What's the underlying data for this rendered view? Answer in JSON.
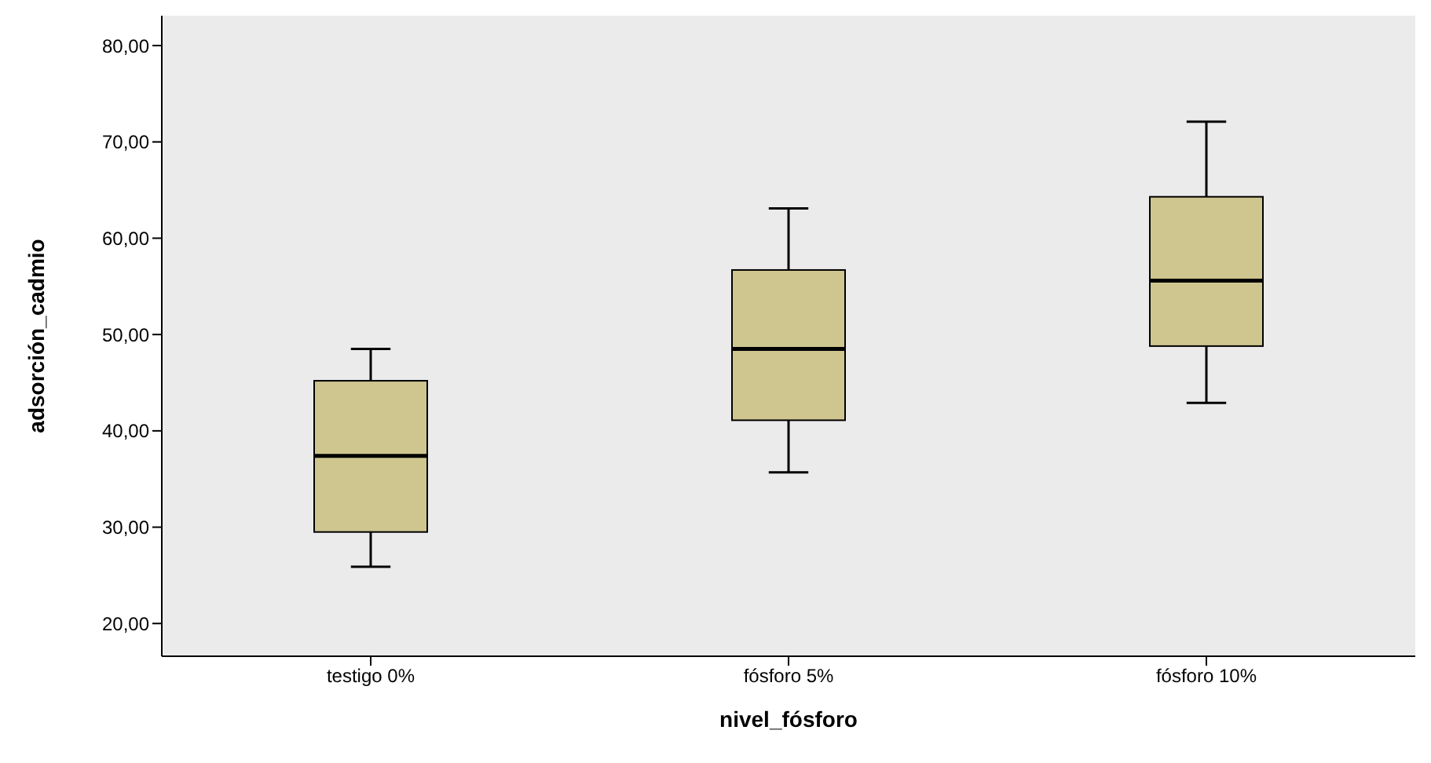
{
  "chart_data": {
    "type": "box",
    "xlabel": "nivel_fósforo",
    "ylabel": "adsorción_cadmio",
    "categories": [
      "testigo 0%",
      "fósforo 5%",
      "fósforo 10%"
    ],
    "color": "#cfc68f",
    "boxes": [
      {
        "low": 25.9,
        "q1": 29.5,
        "median": 37.4,
        "q3": 45.2,
        "high": 48.5
      },
      {
        "low": 35.7,
        "q1": 41.1,
        "median": 48.5,
        "q3": 56.7,
        "high": 63.1
      },
      {
        "low": 42.9,
        "q1": 48.8,
        "median": 55.6,
        "q3": 64.3,
        "high": 72.1
      }
    ],
    "ylim": [
      16.6,
      83.1
    ],
    "yticks": [
      {
        "value": 20,
        "label": "20,00"
      },
      {
        "value": 30,
        "label": "30,00"
      },
      {
        "value": 40,
        "label": "40,00"
      },
      {
        "value": 50,
        "label": "50,00"
      },
      {
        "value": 60,
        "label": "60,00"
      },
      {
        "value": 70,
        "label": "70,00"
      },
      {
        "value": 80,
        "label": "80,00"
      }
    ],
    "grid": false
  }
}
